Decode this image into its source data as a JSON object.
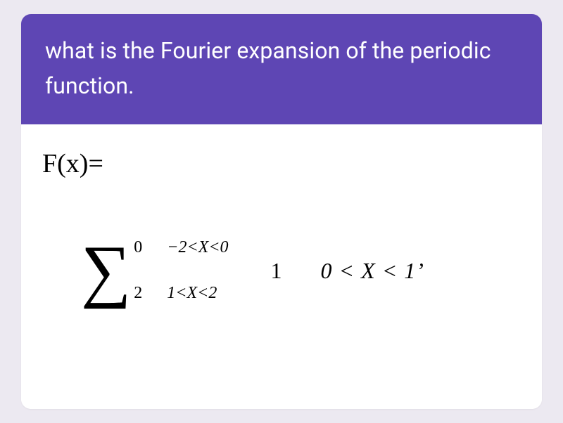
{
  "header": {
    "title": "what is the Fourier expansion of the periodic function.",
    "background_color": "#5e46b4",
    "text_color": "#ffffff",
    "font_size": 32
  },
  "body": {
    "fx_label": "F(x)=",
    "fx_font_size": 38,
    "sigma_glyph": "∑",
    "sigma_font_size": 100,
    "sigma_upper": "0",
    "sigma_lower": "2",
    "stack_top": "−2<X<0",
    "stack_bottom": "1<X<2",
    "middle_value": "1",
    "right_range": "0 < X < 1’",
    "card_bg": "#ffffff",
    "page_bg": "#ece9f1",
    "text_color": "#000000"
  }
}
